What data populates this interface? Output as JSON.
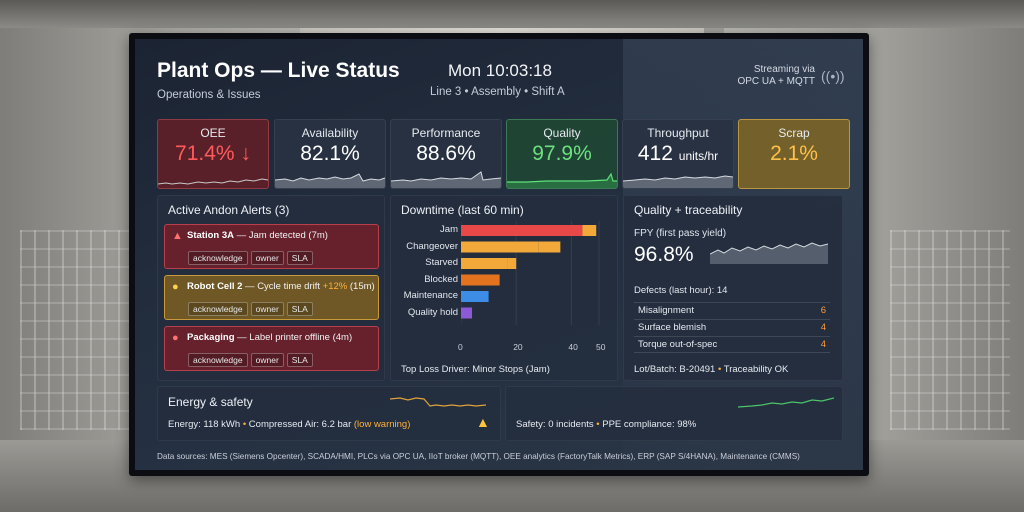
{
  "header": {
    "title": "Plant Ops — Live Status",
    "subtitle": "Operations & Issues",
    "clock": "Mon 10:03:18",
    "line_info": "Line 3 • Assembly • Shift A",
    "stream_line1": "Streaming via",
    "stream_line2": "OPC UA + MQTT"
  },
  "kpis": [
    {
      "label": "OEE",
      "value": "71.4%",
      "trend": "↓",
      "unit": ""
    },
    {
      "label": "Availability",
      "value": "82.1%",
      "unit": ""
    },
    {
      "label": "Performance",
      "value": "88.6%",
      "unit": ""
    },
    {
      "label": "Quality",
      "value": "97.9%",
      "unit": ""
    },
    {
      "label": "Throughput",
      "value": "412",
      "unit": "units/hr"
    },
    {
      "label": "Scrap",
      "value": "2.1%",
      "unit": ""
    }
  ],
  "alerts": {
    "title": "Active Andon Alerts (3)",
    "items": [
      {
        "source": "Station 3A",
        "message": " — Jam detected (7m)",
        "pre": "",
        "highlight": "",
        "post": "",
        "level": "critical"
      },
      {
        "source": "Robot Cell 2",
        "message": "",
        "pre": " — Cycle time drift ",
        "highlight": "+12%",
        "post": " (15m)",
        "level": "warning"
      },
      {
        "source": "Packaging",
        "message": " — Label printer offline (4m)",
        "pre": "",
        "highlight": "",
        "post": "",
        "level": "critical"
      }
    ],
    "actions": [
      "acknowledge",
      "owner",
      "SLA"
    ]
  },
  "downtime": {
    "title": "Downtime (last 60 min)",
    "footer": "Top Loss Driver: Minor Stops (Jam)"
  },
  "quality": {
    "title": "Quality + traceability",
    "fpy_label": "FPY (first pass yield)",
    "fpy_value": "96.8%",
    "defects_label": "Defects (last hour): 14",
    "defects": [
      {
        "name": "Misalignment",
        "count": "6"
      },
      {
        "name": "Surface blemish",
        "count": "4"
      },
      {
        "name": "Torque out-of-spec",
        "count": "4"
      }
    ],
    "lot_prefix": "Lot/Batch: B-20491",
    "traceability": "Traceability OK"
  },
  "energy": {
    "title": "Energy & safety",
    "energy_label": "Energy:",
    "energy_value": "118 kWh",
    "air_label": "Compressed Air:",
    "air_value": "6.2 bar",
    "air_warning": "(low warning)"
  },
  "safety": {
    "incidents": "Safety: 0 incidents",
    "ppe_label": "PPE compliance:",
    "ppe_value": "98%"
  },
  "sources": "Data sources: MES (Siemens Opcenter), SCADA/HMI, PLCs via OPC UA, IIoT broker (MQTT), OEE analytics (FactoryTalk Metrics), ERP (SAP S/4HANA), Maintenance (CMMS)",
  "chart_data": {
    "type": "bar",
    "orientation": "horizontal",
    "stacked": true,
    "title": "Downtime (last 60 min)",
    "categories": [
      "Jam",
      "Changeover",
      "Starved",
      "Blocked",
      "Maintenance",
      "Quality hold"
    ],
    "series": [
      {
        "name": "primary",
        "values": [
          44,
          28,
          17,
          14,
          10,
          4
        ],
        "color": "#e84848"
      },
      {
        "name": "secondary",
        "values": [
          5,
          8,
          3,
          0,
          0,
          0
        ],
        "color": "#f2a93a"
      }
    ],
    "bar_colors": [
      "#e84848",
      "#f2a93a",
      "#f2a93a",
      "#e4731f",
      "#3d8de6",
      "#8d5ad6"
    ],
    "xticks": [
      0,
      20,
      40,
      50
    ],
    "xlim": [
      0,
      50
    ],
    "footer": "Top Loss Driver: Minor Stops (Jam)"
  }
}
